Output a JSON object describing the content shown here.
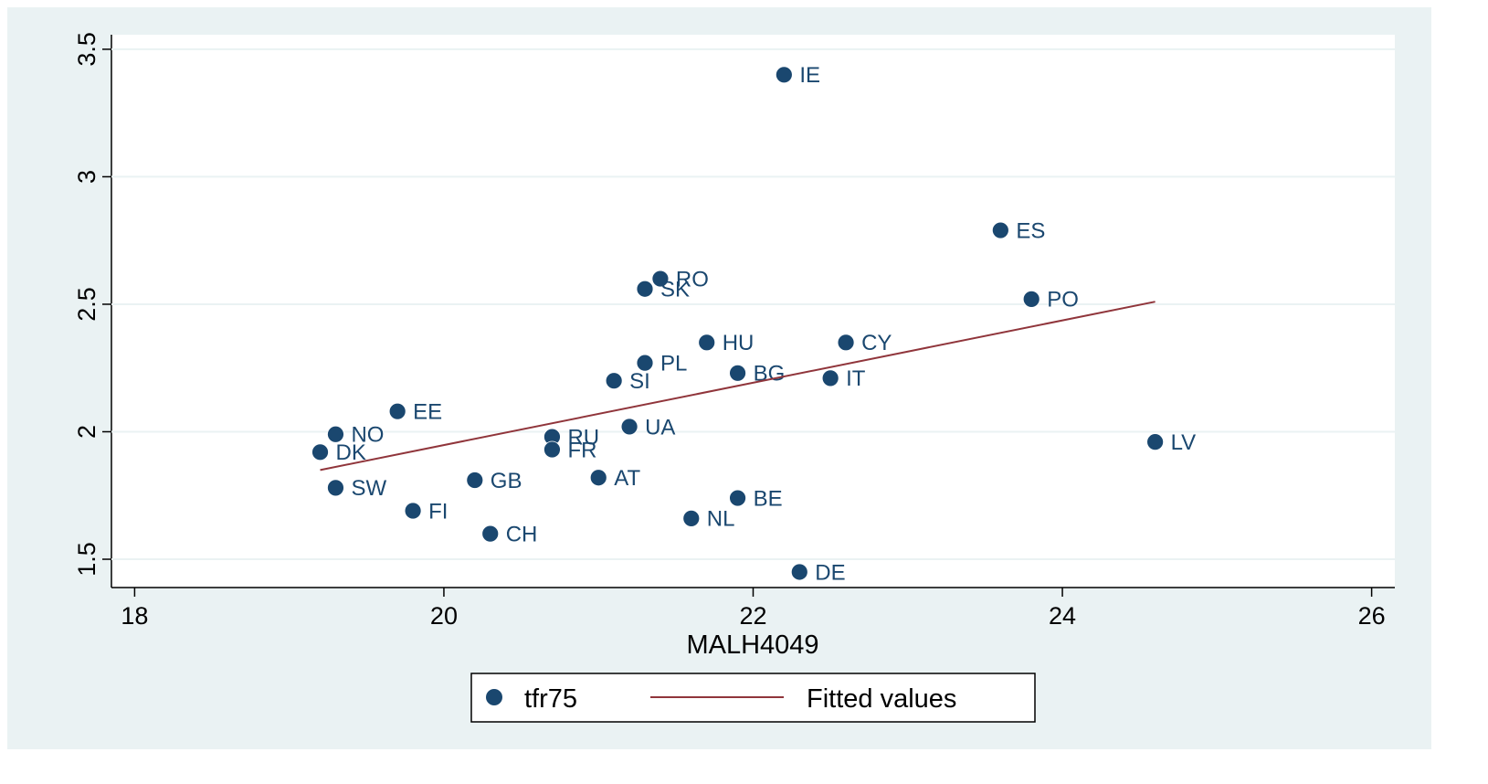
{
  "chart_data": {
    "type": "scatter",
    "xlabel": "MALH4049",
    "xlim": [
      17.85,
      26.15
    ],
    "xticks": [
      18,
      20,
      22,
      24,
      26
    ],
    "ylim": [
      1.389,
      3.557
    ],
    "yticks": [
      1.5,
      2,
      2.5,
      3,
      3.5
    ],
    "grid": true,
    "legend": "bottom",
    "series": [
      {
        "name": "tfr75",
        "type": "scatter",
        "color": "#1a476f",
        "labels": [
          "IE",
          "ES",
          "PO",
          "RO",
          "SK",
          "HU",
          "CY",
          "PL",
          "BG",
          "IT",
          "SI",
          "EE",
          "UA",
          "NO",
          "RU",
          "DK",
          "FR",
          "LV",
          "AT",
          "GB",
          "SW",
          "BE",
          "FI",
          "NL",
          "CH",
          "DE"
        ],
        "x": [
          22.2,
          23.6,
          23.8,
          21.4,
          21.3,
          21.7,
          22.6,
          21.3,
          21.9,
          22.5,
          21.1,
          19.7,
          21.2,
          19.3,
          20.7,
          19.2,
          20.7,
          24.6,
          21.0,
          20.2,
          19.3,
          21.9,
          19.8,
          21.6,
          20.3,
          22.3
        ],
        "values": [
          3.4,
          2.79,
          2.52,
          2.6,
          2.56,
          2.35,
          2.35,
          2.27,
          2.23,
          2.21,
          2.2,
          2.08,
          2.02,
          1.99,
          1.98,
          1.92,
          1.93,
          1.96,
          1.82,
          1.81,
          1.78,
          1.74,
          1.69,
          1.66,
          1.6,
          1.45
        ]
      },
      {
        "name": "Fitted values",
        "type": "line",
        "color": "#90353b",
        "x": [
          19.2,
          24.6
        ],
        "values": [
          1.85,
          2.51
        ]
      }
    ]
  }
}
